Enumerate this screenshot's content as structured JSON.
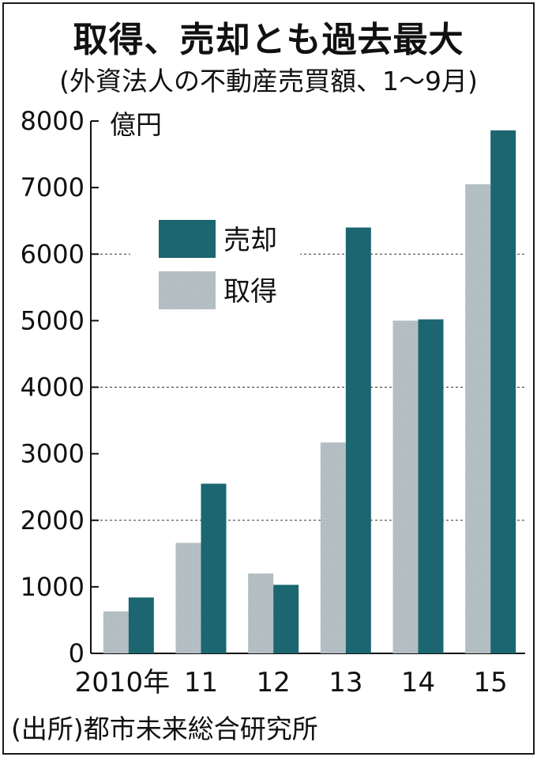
{
  "title": "取得、売却とも過去最大",
  "subtitle": "(外資法人の不動産売買額、1〜9月)",
  "source": "(出所)都市未来総合研究所",
  "colors": {
    "sale": "#1b6670",
    "acquisition": "#b9c4c8",
    "grid": "#333333",
    "axis": "#111111"
  },
  "chart_data": {
    "type": "bar",
    "title": "取得、売却とも過去最大",
    "subtitle": "(外資法人の不動産売買額、1〜9月)",
    "unit": "億円",
    "categories": [
      "2010年",
      "11",
      "12",
      "13",
      "14",
      "15"
    ],
    "series": [
      {
        "name": "取得",
        "color_key": "acquisition",
        "values": [
          630,
          1660,
          1200,
          3170,
          5000,
          7050
        ]
      },
      {
        "name": "売却",
        "color_key": "sale",
        "values": [
          840,
          2550,
          1030,
          6400,
          5020,
          7860
        ]
      }
    ],
    "ylim": [
      0,
      8000
    ],
    "yticks": [
      "0",
      "1000",
      "2000",
      "3000",
      "4000",
      "5000",
      "6000",
      "7000",
      "8000"
    ],
    "dashed_gridlines_at": [
      2000,
      4000,
      6000
    ],
    "legend": {
      "position": "upper-left",
      "order": [
        "売却",
        "取得"
      ]
    },
    "grid": true
  }
}
